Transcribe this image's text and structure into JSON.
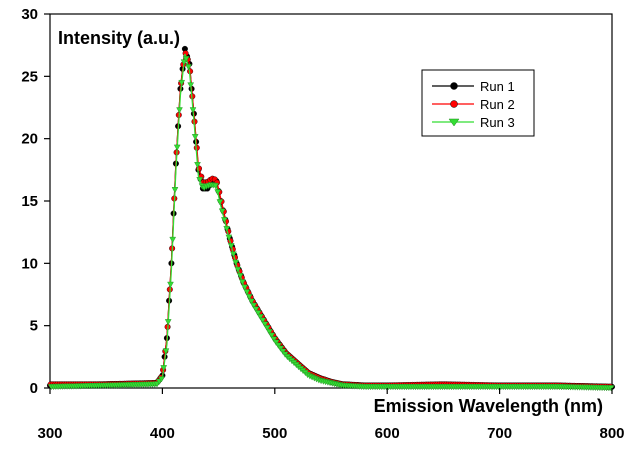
{
  "chart_data": {
    "type": "line",
    "title": "",
    "xlabel": "Emission Wavelength (nm)",
    "ylabel": "Intensity (a.u.)",
    "xlim": [
      300,
      800
    ],
    "ylim": [
      0,
      30
    ],
    "xticks": [
      "300",
      "400",
      "500",
      "600",
      "700",
      "800"
    ],
    "yticks": [
      "0",
      "5",
      "10",
      "15",
      "20",
      "25",
      "30"
    ],
    "grid": false,
    "legend_position": "top-right",
    "x": [
      300,
      350,
      395,
      400,
      404,
      408,
      412,
      416,
      420,
      424,
      428,
      432,
      436,
      440,
      444,
      448,
      452,
      456,
      460,
      466,
      472,
      480,
      490,
      500,
      510,
      520,
      530,
      540,
      550,
      560,
      580,
      600,
      650,
      700,
      750,
      800
    ],
    "series": [
      {
        "name": "Run 1",
        "color": "#000000",
        "marker": "circle",
        "values": [
          0.2,
          0.3,
          0.4,
          1.0,
          4.0,
          10.0,
          18.0,
          24.0,
          27.2,
          26.0,
          22.0,
          17.5,
          16.0,
          16.0,
          16.5,
          16.6,
          15.0,
          13.5,
          12.0,
          10.0,
          8.5,
          7.0,
          5.5,
          4.0,
          2.8,
          2.0,
          1.2,
          0.8,
          0.5,
          0.3,
          0.2,
          0.2,
          0.2,
          0.2,
          0.2,
          0.1
        ]
      },
      {
        "name": "Run 2",
        "color": "#ff0000",
        "marker": "circle",
        "values": [
          0.3,
          0.3,
          0.4,
          1.0,
          4.0,
          10.0,
          18.0,
          24.0,
          27.0,
          26.0,
          22.0,
          17.8,
          16.5,
          16.5,
          16.8,
          16.7,
          15.2,
          13.6,
          12.0,
          10.0,
          8.5,
          7.0,
          5.5,
          4.0,
          2.8,
          2.0,
          1.2,
          0.8,
          0.5,
          0.3,
          0.2,
          0.2,
          0.3,
          0.2,
          0.2,
          0.1
        ]
      },
      {
        "name": "Run 3",
        "color": "#33dd33",
        "marker": "triangle-down",
        "values": [
          0.1,
          0.2,
          0.3,
          0.8,
          3.5,
          9.5,
          17.5,
          23.5,
          26.8,
          25.5,
          21.5,
          17.0,
          16.0,
          16.2,
          16.3,
          16.2,
          14.6,
          13.2,
          11.8,
          9.8,
          8.3,
          6.8,
          5.3,
          3.8,
          2.6,
          1.8,
          1.0,
          0.6,
          0.4,
          0.2,
          0.1,
          0.1,
          0.1,
          0.1,
          0.1,
          0.0
        ]
      }
    ]
  }
}
